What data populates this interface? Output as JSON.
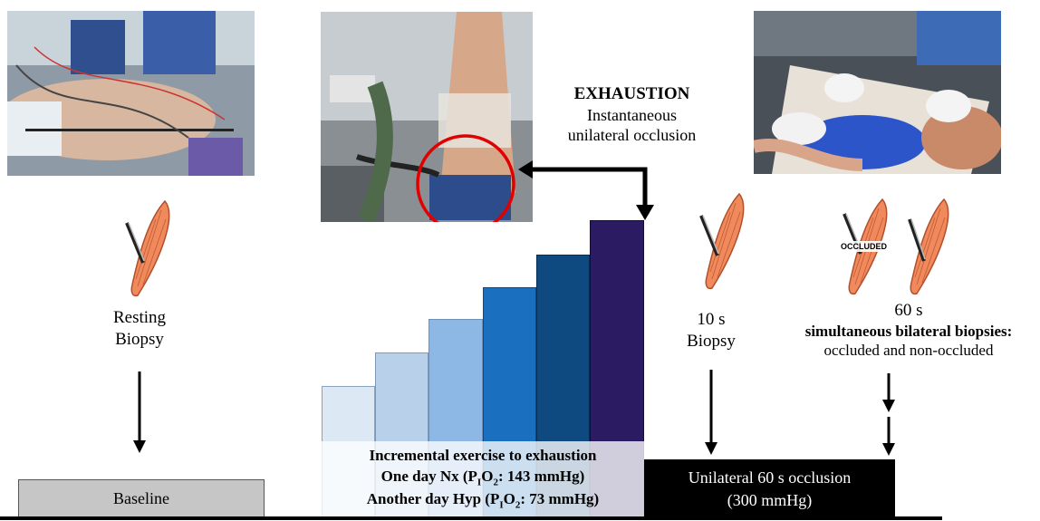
{
  "exhaustion": {
    "title": "EXHAUSTION",
    "line1": "Instantaneous",
    "line2": "unilateral occlusion"
  },
  "resting_biopsy": {
    "line1": "Resting",
    "line2": "Biopsy"
  },
  "biopsy_10s": {
    "line1": "10 s",
    "line2": "Biopsy"
  },
  "biopsy_60s": {
    "line1": "60 s",
    "line2": "simultaneous bilateral biopsies:",
    "line3": "occluded and non-occluded",
    "occluded_tag": "OCCLUDED"
  },
  "baseline": {
    "label": "Baseline"
  },
  "exercise": {
    "line1": "Incremental exercise to exhaustion",
    "line2_prefix": "One day Nx (P",
    "line2_sub": "I",
    "line2_mid": "O",
    "line2_sub2": "2",
    "line2_suffix": ": 143 mmHg)",
    "line3_prefix": "Another day Hyp (P",
    "line3_sub": "I",
    "line3_mid": "O",
    "line3_sub2": "2",
    "line3_suffix": ": 73 mmHg)"
  },
  "occlusion": {
    "line1": "Unilateral 60 s occlusion",
    "line2": "(300 mmHg)"
  },
  "colors": {
    "steps": [
      "#dce8f4",
      "#b9d0ea",
      "#8db8e5",
      "#1a6fbf",
      "#0e4a80",
      "#2b1b63"
    ],
    "baseline_fill": "#c6c6c6",
    "occlusion_fill": "#000000",
    "highlight_circle": "#e00000",
    "muscle": "#f08a5d"
  },
  "icons": [
    "muscle-biopsy-icon",
    "photo-patient-supine",
    "photo-cycling-subject",
    "photo-leg-biopsy"
  ]
}
